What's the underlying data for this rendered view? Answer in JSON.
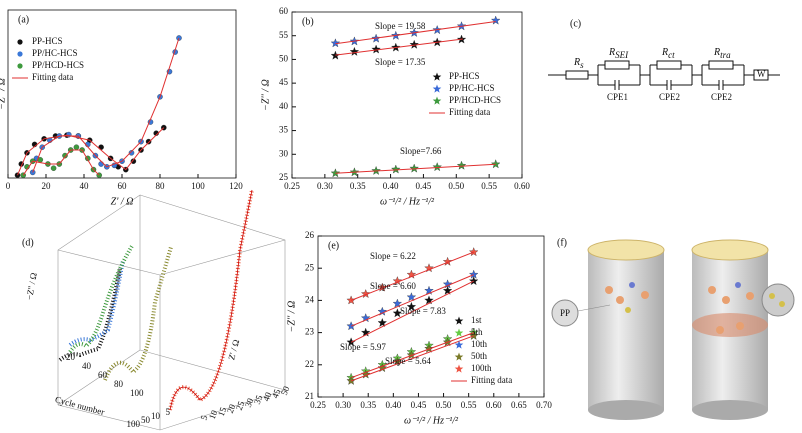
{
  "chart_data": [
    {
      "type": "scatter",
      "title": "(a)",
      "x_label": "Z' / Ω",
      "y_label": "−Z'' / Ω",
      "xlim": [
        0,
        120
      ],
      "ylim": [
        0,
        60
      ],
      "xticks": [
        0,
        20,
        40,
        60,
        80,
        100,
        120
      ],
      "legend": "upper left",
      "series": [
        {
          "name": "PP-HCS",
          "color": "#111111",
          "marker": "circle",
          "x": [
            5,
            7,
            10,
            14,
            19,
            25,
            31,
            37,
            43,
            49,
            54,
            58,
            62,
            66,
            70,
            74,
            78,
            82
          ],
          "values": [
            1,
            5,
            9,
            12,
            14,
            15,
            15.3,
            15,
            13.5,
            11,
            7,
            4,
            3,
            6,
            10,
            13,
            16,
            18
          ]
        },
        {
          "name": "PP/HC-HCS",
          "color": "#3a78d8",
          "marker": "circle",
          "x": [
            13,
            15,
            18,
            22,
            27,
            32,
            37,
            42,
            46,
            49,
            52,
            56,
            60,
            65,
            70,
            75,
            80,
            85,
            88,
            90
          ],
          "values": [
            2,
            7,
            11,
            13.5,
            15,
            15.5,
            15,
            12,
            8,
            5,
            4,
            4.5,
            6,
            9,
            13,
            20,
            29,
            38,
            45,
            50
          ]
        },
        {
          "name": "PP/HCD-HCS",
          "color": "#3e9a3e",
          "marker": "circle",
          "x": [
            8,
            10,
            13,
            17,
            21,
            24,
            27,
            30,
            33,
            36,
            39,
            42,
            45,
            48
          ],
          "values": [
            1,
            4,
            6,
            6.5,
            5,
            3.5,
            5,
            8,
            10,
            11,
            10,
            7,
            3,
            1
          ]
        },
        {
          "name": "Fitting data",
          "color": "#e03030",
          "marker": "line",
          "x": [
            5,
            10,
            19,
            31,
            43,
            54,
            62,
            70,
            82,
            null,
            13,
            18,
            27,
            37,
            46,
            52,
            60,
            70,
            80,
            90,
            null,
            8,
            13,
            21,
            27,
            33,
            39,
            45,
            48
          ],
          "values": [
            1,
            9,
            14,
            15.3,
            13.5,
            7,
            3,
            10,
            18,
            null,
            2,
            11,
            15,
            15,
            8,
            4,
            6,
            13,
            29,
            50,
            null,
            1,
            6,
            5,
            5,
            10,
            10,
            3,
            1
          ]
        }
      ]
    },
    {
      "type": "scatter",
      "title": "(b)",
      "x_label": "ω⁻¹/² / Hz⁻¹/²",
      "y_label": "−Z'' / Ω",
      "xlim": [
        0.25,
        0.6
      ],
      "ylim": [
        25,
        60
      ],
      "xticks": [
        {
          "value": 0.25,
          "label": "0.25"
        },
        {
          "value": 0.3,
          "label": "0.30"
        },
        {
          "value": 0.35,
          "label": "0.35"
        },
        {
          "value": 0.4,
          "label": "0.40"
        },
        {
          "value": 0.45,
          "label": "0.45"
        },
        {
          "value": 0.5,
          "label": "0.50"
        },
        {
          "value": 0.55,
          "label": "0.55"
        },
        {
          "value": 0.6,
          "label": "0.60"
        }
      ],
      "yticks": [
        25,
        30,
        35,
        40,
        45,
        50,
        55,
        60
      ],
      "legend": "center right",
      "annotations": [
        "Slope = 19.58",
        "Slope = 17.35",
        "Slope=7.66"
      ],
      "series": [
        {
          "name": "PP-HCS",
          "color": "#111111",
          "marker": "star",
          "x": [
            0.316,
            0.345,
            0.378,
            0.408,
            0.436,
            0.471,
            0.508
          ],
          "values": [
            50.8,
            51.6,
            52.1,
            52.5,
            53.1,
            53.6,
            54.2
          ]
        },
        {
          "name": "PP/HC-HCS",
          "color": "#3a6ad8",
          "marker": "star",
          "x": [
            0.316,
            0.345,
            0.378,
            0.408,
            0.436,
            0.471,
            0.508,
            0.56
          ],
          "values": [
            53.4,
            53.8,
            54.4,
            55.0,
            55.6,
            56.2,
            57.0,
            58.2
          ]
        },
        {
          "name": "PP/HCD-HCS",
          "color": "#3e9a3e",
          "marker": "star",
          "x": [
            0.316,
            0.345,
            0.378,
            0.408,
            0.436,
            0.471,
            0.508,
            0.56
          ],
          "values": [
            26,
            26.2,
            26.5,
            26.8,
            27,
            27.3,
            27.6,
            27.9
          ]
        },
        {
          "name": "Fitting data",
          "color": "#e03030",
          "marker": "line",
          "x": [
            0.316,
            0.51,
            null,
            0.316,
            0.56,
            null,
            0.316,
            0.56
          ],
          "values": [
            50.9,
            54.3,
            null,
            53.3,
            58.0,
            null,
            26,
            27.9
          ]
        }
      ]
    },
    {
      "type": "scatter",
      "title": "(e)",
      "x_label": "ω⁻¹/² / Hz⁻¹/²",
      "y_label": "−Z'' / Ω",
      "xlim": [
        0.25,
        0.7
      ],
      "ylim": [
        21,
        26
      ],
      "xticks": [
        {
          "value": 0.25,
          "label": "0.25"
        },
        {
          "value": 0.3,
          "label": "0.30"
        },
        {
          "value": 0.35,
          "label": "0.35"
        },
        {
          "value": 0.4,
          "label": "0.40"
        },
        {
          "value": 0.45,
          "label": "0.45"
        },
        {
          "value": 0.5,
          "label": "0.50"
        },
        {
          "value": 0.55,
          "label": "0.55"
        },
        {
          "value": 0.6,
          "label": "0.60"
        },
        {
          "value": 0.65,
          "label": "0.65"
        },
        {
          "value": 0.7,
          "label": "0.70"
        }
      ],
      "yticks": [
        21,
        22,
        23,
        24,
        25,
        26
      ],
      "legend": "lower right",
      "annotations": [
        "Slope = 6.22",
        "Slope = 6.60",
        "Slope = 7.83",
        "Slope = 5.97",
        "Slope = 5.64"
      ],
      "series": [
        {
          "name": "1st",
          "color": "#111111",
          "marker": "star",
          "x": [
            0.316,
            0.345,
            0.378,
            0.408,
            0.436,
            0.471,
            0.508,
            0.56
          ],
          "values": [
            22.7,
            23.0,
            23.3,
            23.6,
            23.8,
            24.0,
            24.3,
            24.6
          ]
        },
        {
          "name": "5th",
          "color": "#66cc44",
          "marker": "star",
          "x": [
            0.316,
            0.345,
            0.378,
            0.408,
            0.436,
            0.471,
            0.508,
            0.56
          ],
          "values": [
            21.6,
            21.8,
            22.0,
            22.2,
            22.4,
            22.6,
            22.8,
            23.0
          ]
        },
        {
          "name": "10th",
          "color": "#3a6ad8",
          "marker": "star",
          "x": [
            0.316,
            0.345,
            0.378,
            0.408,
            0.436,
            0.471,
            0.508,
            0.56
          ],
          "values": [
            23.2,
            23.45,
            23.65,
            23.9,
            24.1,
            24.3,
            24.5,
            24.8
          ]
        },
        {
          "name": "50th",
          "color": "#7a7a28",
          "marker": "star",
          "x": [
            0.316,
            0.345,
            0.378,
            0.408,
            0.436,
            0.471,
            0.508,
            0.56
          ],
          "values": [
            21.5,
            21.7,
            21.9,
            22.1,
            22.3,
            22.5,
            22.7,
            22.9
          ]
        },
        {
          "name": "100th",
          "color": "#ee5544",
          "marker": "star",
          "x": [
            0.316,
            0.345,
            0.378,
            0.408,
            0.436,
            0.471,
            0.508,
            0.56
          ],
          "values": [
            24.0,
            24.2,
            24.4,
            24.6,
            24.8,
            25.0,
            25.2,
            25.5
          ]
        },
        {
          "name": "Fitting data",
          "color": "#e03030",
          "marker": "line",
          "x": [
            0.316,
            0.56,
            null,
            0.316,
            0.56,
            null,
            0.316,
            0.56,
            null,
            0.316,
            0.56,
            null,
            0.316,
            0.56
          ],
          "values": [
            22.7,
            24.6,
            null,
            21.6,
            23.0,
            null,
            23.2,
            24.8,
            null,
            21.5,
            22.9,
            null,
            24.0,
            25.5
          ]
        }
      ]
    }
  ],
  "circuit": {
    "title": "(c)",
    "elements": [
      {
        "label": "R",
        "sub": "s"
      },
      {
        "label": "R",
        "sub": "SEI"
      },
      {
        "label": "R",
        "sub": "ct"
      },
      {
        "label": "R",
        "sub": "tra"
      },
      {
        "label": "CPE1"
      },
      {
        "label": "CPE2"
      },
      {
        "label": "CPE2"
      },
      {
        "label": "W"
      }
    ]
  },
  "panel_d": {
    "title": "(d)",
    "y_label": "−Z'' / Ω",
    "cycle_label": "Cycle number",
    "x_label": "Z' / Ω",
    "cycle_ticks": [
      "20",
      "40",
      "60",
      "80",
      "100"
    ],
    "z_ticks": [
      "5",
      "10",
      "15",
      "20",
      "25",
      "30",
      "35",
      "40",
      "45",
      "50"
    ],
    "front_ticks": [
      "100",
      "50",
      "10",
      "5"
    ]
  },
  "panel_f": {
    "title": "(f)",
    "label": "PP"
  }
}
